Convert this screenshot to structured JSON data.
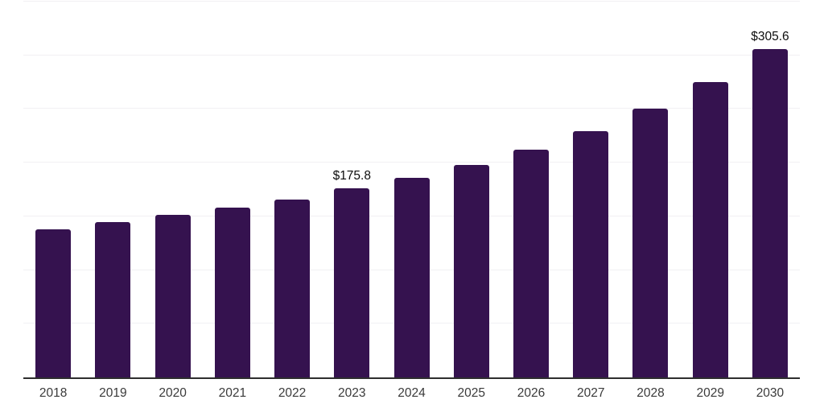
{
  "chart_data": {
    "type": "bar",
    "title": "",
    "xlabel": "",
    "ylabel": "",
    "categories": [
      "2018",
      "2019",
      "2020",
      "2021",
      "2022",
      "2023",
      "2024",
      "2025",
      "2026",
      "2027",
      "2028",
      "2029",
      "2030"
    ],
    "values": [
      138.3,
      144.5,
      151.2,
      158.1,
      166.0,
      175.8,
      186.2,
      198.0,
      211.8,
      229.2,
      250.1,
      275.0,
      305.6
    ],
    "data_labels": {
      "2023": "$175.8",
      "2030": "$305.6"
    },
    "ylim": [
      0,
      350
    ],
    "gridline_step": 50,
    "grid": "horizontal-only",
    "legend": "none",
    "bar_color": "#35124F",
    "axis_line_color": "#2e2e2e",
    "gridline_color": "#f1f0f3",
    "label_color": "#0d0d0d",
    "tick_label_color": "#3a3a3a",
    "background_color": "#ffffff"
  }
}
